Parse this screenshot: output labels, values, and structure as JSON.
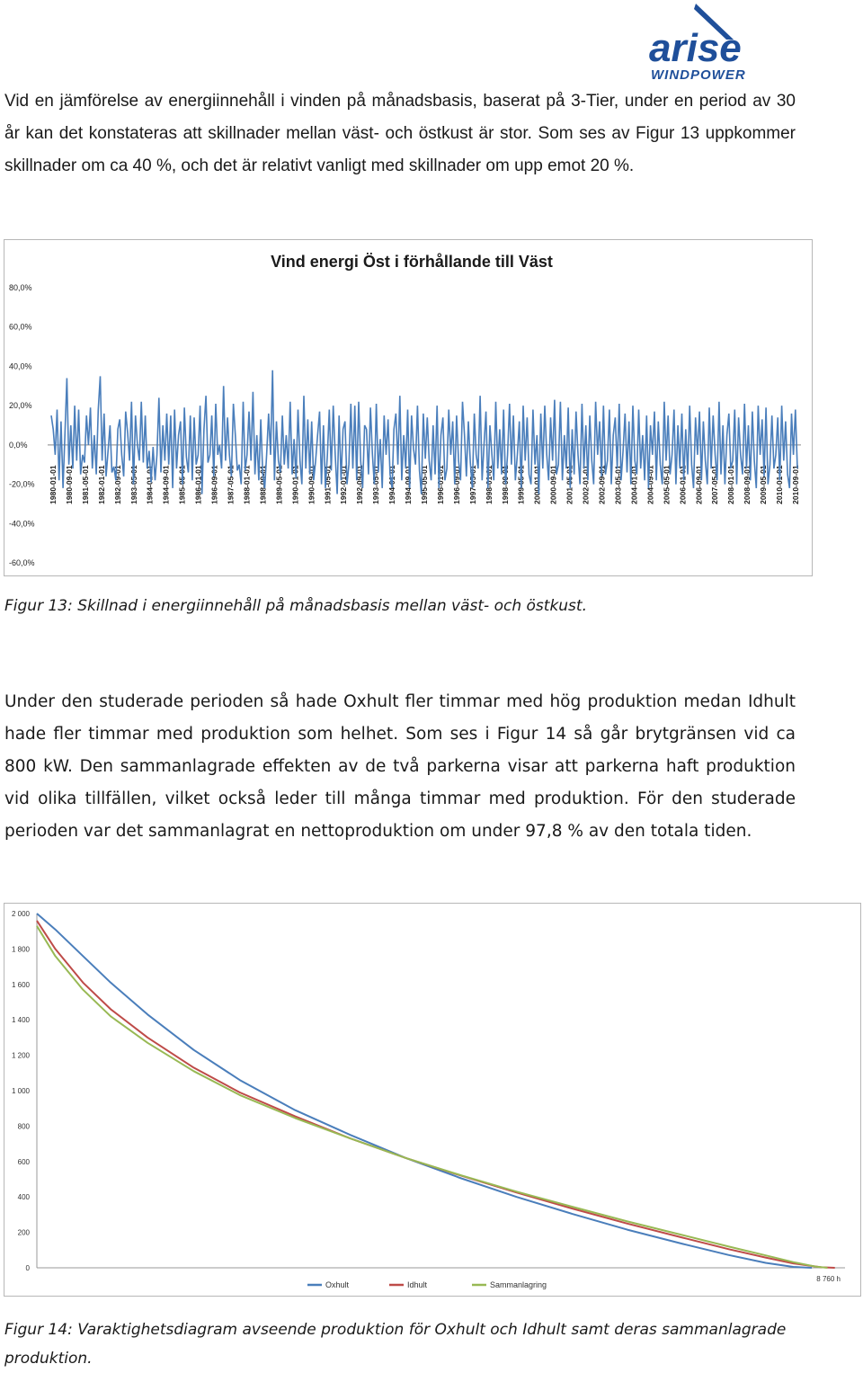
{
  "logo": {
    "name": "arise",
    "sub": "WINDPOWER",
    "color": "#1f4f9a"
  },
  "paragraph1": "Vid en jämförelse av energiinnehåll i vinden på månadsbasis, baserat på 3-Tier, under en period av 30 år kan det konstateras att skillnader mellan väst- och östkust är stor. Som ses av Figur 13 uppkommer skillnader om ca 40 %, och det är relativt vanligt med skillnader om upp emot 20 %.",
  "caption1": "Figur 13: Skillnad i energiinnehåll på månadsbasis mellan väst- och östkust.",
  "paragraph2": "Under den studerade perioden så hade Oxhult fler timmar med hög produktion medan Idhult hade fler timmar med produktion som helhet. Som ses i Figur 14 så går brytgränsen vid ca 800 kW. Den sammanlagrade effekten av de två parkerna visar att parkerna haft produktion vid olika tillfällen, vilket också leder till många timmar med produktion. För den studerade perioden var det sammanlagrat en nettoproduktion om under 97,8 % av den totala tiden.",
  "caption2": "Figur 14: Varaktighetsdiagram avseende produktion för Oxhult och Idhult samt deras sammanlagrade produktion.",
  "chart_data": [
    {
      "type": "line",
      "title": "Vind energi Öst i förhållande till Väst",
      "ylim": [
        -60,
        80
      ],
      "y_ticks": [
        "80,0%",
        "60,0%",
        "40,0%",
        "20,0%",
        "0,0%",
        "-20,0%",
        "-40,0%",
        "-60,0%"
      ],
      "x_ticks": [
        "1980-01-01",
        "1980-09-01",
        "1981-05-01",
        "1982-01-01",
        "1982-09-01",
        "1983-05-01",
        "1984-01-01",
        "1984-09-01",
        "1985-05-01",
        "1986-01-01",
        "1986-09-01",
        "1987-05-01",
        "1988-01-01",
        "1988-09-01",
        "1989-05-01",
        "1990-01-01",
        "1990-09-01",
        "1991-05-01",
        "1992-01-01",
        "1992-09-01",
        "1993-05-01",
        "1994-01-01",
        "1994-09-01",
        "1995-05-01",
        "1996-01-01",
        "1996-09-01",
        "1997-05-01",
        "1998-01-01",
        "1998-09-01",
        "1999-05-01",
        "2000-01-01",
        "2000-09-01",
        "2001-05-01",
        "2002-01-01",
        "2002-09-01",
        "2003-05-01",
        "2004-01-01",
        "2004-09-01",
        "2005-05-01",
        "2006-01-01",
        "2006-09-01",
        "2007-05-01",
        "2008-01-01",
        "2008-09-01",
        "2009-05-01",
        "2010-01-01",
        "2010-09-01"
      ],
      "grid": false,
      "legend": "none",
      "series_color": "#4a7ebb",
      "series": [
        {
          "values": [
            15,
            8,
            -5,
            18,
            -18,
            12,
            -22,
            5,
            34,
            -10,
            10,
            -12,
            20,
            -8,
            18,
            -15,
            -5,
            -9,
            15,
            0,
            19,
            -12,
            5,
            -15,
            18,
            35,
            -8,
            16,
            -16,
            -3,
            10,
            -14,
            -11,
            -18,
            8,
            13,
            -5,
            -16,
            17,
            6,
            -8,
            22,
            -20,
            15,
            0,
            -8,
            22,
            -9,
            15,
            -12,
            -3,
            -19,
            -1,
            -18,
            -5,
            24,
            -14,
            10,
            -8,
            16,
            -10,
            15,
            -22,
            18,
            -12,
            5,
            12,
            -20,
            19,
            -6,
            -14,
            15,
            -18,
            14,
            -10,
            -5,
            20,
            -25,
            8,
            25,
            -9,
            -5,
            15,
            -16,
            21,
            -5,
            0,
            -12,
            30,
            -8,
            14,
            -5,
            -16,
            21,
            5,
            -13,
            -10,
            -20,
            22,
            -13,
            -5,
            17,
            -8,
            27,
            -15,
            5,
            -18,
            13,
            -15,
            -22,
            -5,
            16,
            -5,
            38,
            -18,
            12,
            -8,
            -14,
            15,
            -10,
            5,
            -12,
            22,
            -15,
            3,
            -17,
            18,
            -8,
            -20,
            25,
            -12,
            13,
            -15,
            12,
            -18,
            -8,
            5,
            17,
            -20,
            10,
            -22,
            -5,
            18,
            -13,
            20,
            -5,
            -25,
            15,
            -18,
            8,
            12,
            -20,
            -10,
            21,
            -12,
            20,
            -18,
            22,
            -8,
            -22,
            10,
            8,
            -15,
            19,
            -5,
            -20,
            21,
            -14,
            3,
            -22,
            15,
            -5,
            13,
            -15,
            -22,
            8,
            16,
            -10,
            25,
            -18,
            5,
            -12,
            18,
            -22,
            15,
            -2,
            -10,
            20,
            -13,
            -25,
            16,
            -7,
            14,
            -8,
            -18,
            10,
            -15,
            20,
            -22,
            5,
            14,
            -18,
            -12,
            18,
            -5,
            12,
            -20,
            15,
            -8,
            -18,
            22,
            5,
            -16,
            12,
            -9,
            -22,
            16,
            -5,
            -12,
            25,
            -18,
            0,
            17,
            -22,
            10,
            -5,
            -18,
            22,
            -12,
            8,
            -15,
            18,
            -20,
            -5,
            21,
            -10,
            15,
            -18,
            -5,
            12,
            -22,
            20,
            -8,
            14,
            -15,
            -20,
            18,
            -10,
            5,
            -25,
            16,
            -12,
            20,
            -5,
            -18,
            14,
            -8,
            23,
            -15,
            -10,
            22,
            -18,
            5,
            -12,
            19,
            -22,
            8,
            -15,
            17,
            -5,
            -20,
            21,
            -12,
            10,
            -18,
            15,
            -8,
            -20,
            22,
            -5,
            12,
            -16,
            20,
            -15,
            -8,
            18,
            -20,
            5,
            14,
            -12,
            21,
            -18,
            -3,
            16,
            -14,
            12,
            -20,
            20,
            -8,
            -15,
            18,
            -12,
            5,
            -18,
            15,
            -22,
            10,
            -5,
            17,
            -18,
            12,
            -10,
            -20,
            22,
            -8,
            15,
            -15,
            -5,
            18,
            -20,
            10,
            -12,
            16,
            -18,
            8,
            -15,
            20,
            -10,
            -22,
            14,
            -5,
            17,
            -18,
            12,
            -8,
            -20,
            19,
            -12,
            15,
            -5,
            -18,
            22,
            -15,
            10,
            -20,
            5,
            16,
            -12,
            -8,
            18,
            -20,
            14,
            -5,
            -15,
            21,
            -12,
            10,
            -18,
            17,
            -8,
            -22,
            20,
            -5,
            13,
            -16,
            19,
            -20,
            -10,
            15,
            -12,
            -5,
            14,
            -18,
            20,
            -8,
            12,
            -15,
            -22,
            16,
            -5,
            18,
            -12
          ]
        }
      ]
    },
    {
      "type": "line",
      "title": "",
      "xlabel": "",
      "ylabel": "",
      "ylim": [
        0,
        2000
      ],
      "xlim": [
        0,
        8760
      ],
      "y_ticks": [
        "2 000",
        "1 800",
        "1 600",
        "1 400",
        "1 200",
        "1 000",
        "800",
        "600",
        "400",
        "200",
        "0"
      ],
      "x_end_label": "8 760 h",
      "legend": "bottom",
      "series": [
        {
          "name": "Oxhult",
          "color": "#4a7ebb",
          "x": [
            0,
            200,
            500,
            800,
            1200,
            1700,
            2200,
            2800,
            3400,
            4000,
            4600,
            5200,
            5800,
            6400,
            7000,
            7500,
            7900,
            8200,
            8400
          ],
          "values": [
            2000,
            1910,
            1760,
            1610,
            1430,
            1230,
            1060,
            890,
            750,
            620,
            505,
            400,
            305,
            215,
            135,
            72,
            28,
            5,
            0
          ]
        },
        {
          "name": "Idhult",
          "color": "#be4b48",
          "x": [
            0,
            200,
            500,
            800,
            1200,
            1700,
            2200,
            2800,
            3400,
            4000,
            4600,
            5200,
            5800,
            6400,
            7000,
            7500,
            7900,
            8200,
            8500,
            8650
          ],
          "values": [
            1960,
            1800,
            1610,
            1460,
            1300,
            1130,
            990,
            855,
            730,
            620,
            520,
            425,
            335,
            250,
            170,
            105,
            58,
            25,
            3,
            0
          ]
        },
        {
          "name": "Sammanlagring",
          "color": "#98b954",
          "x": [
            0,
            200,
            500,
            800,
            1200,
            1700,
            2200,
            2800,
            3400,
            4000,
            4600,
            5200,
            5800,
            6400,
            7000,
            7500,
            7900,
            8200,
            8450,
            8570
          ],
          "values": [
            1930,
            1760,
            1570,
            1420,
            1270,
            1110,
            975,
            845,
            730,
            620,
            522,
            430,
            345,
            262,
            185,
            120,
            70,
            32,
            6,
            0
          ]
        }
      ]
    }
  ]
}
